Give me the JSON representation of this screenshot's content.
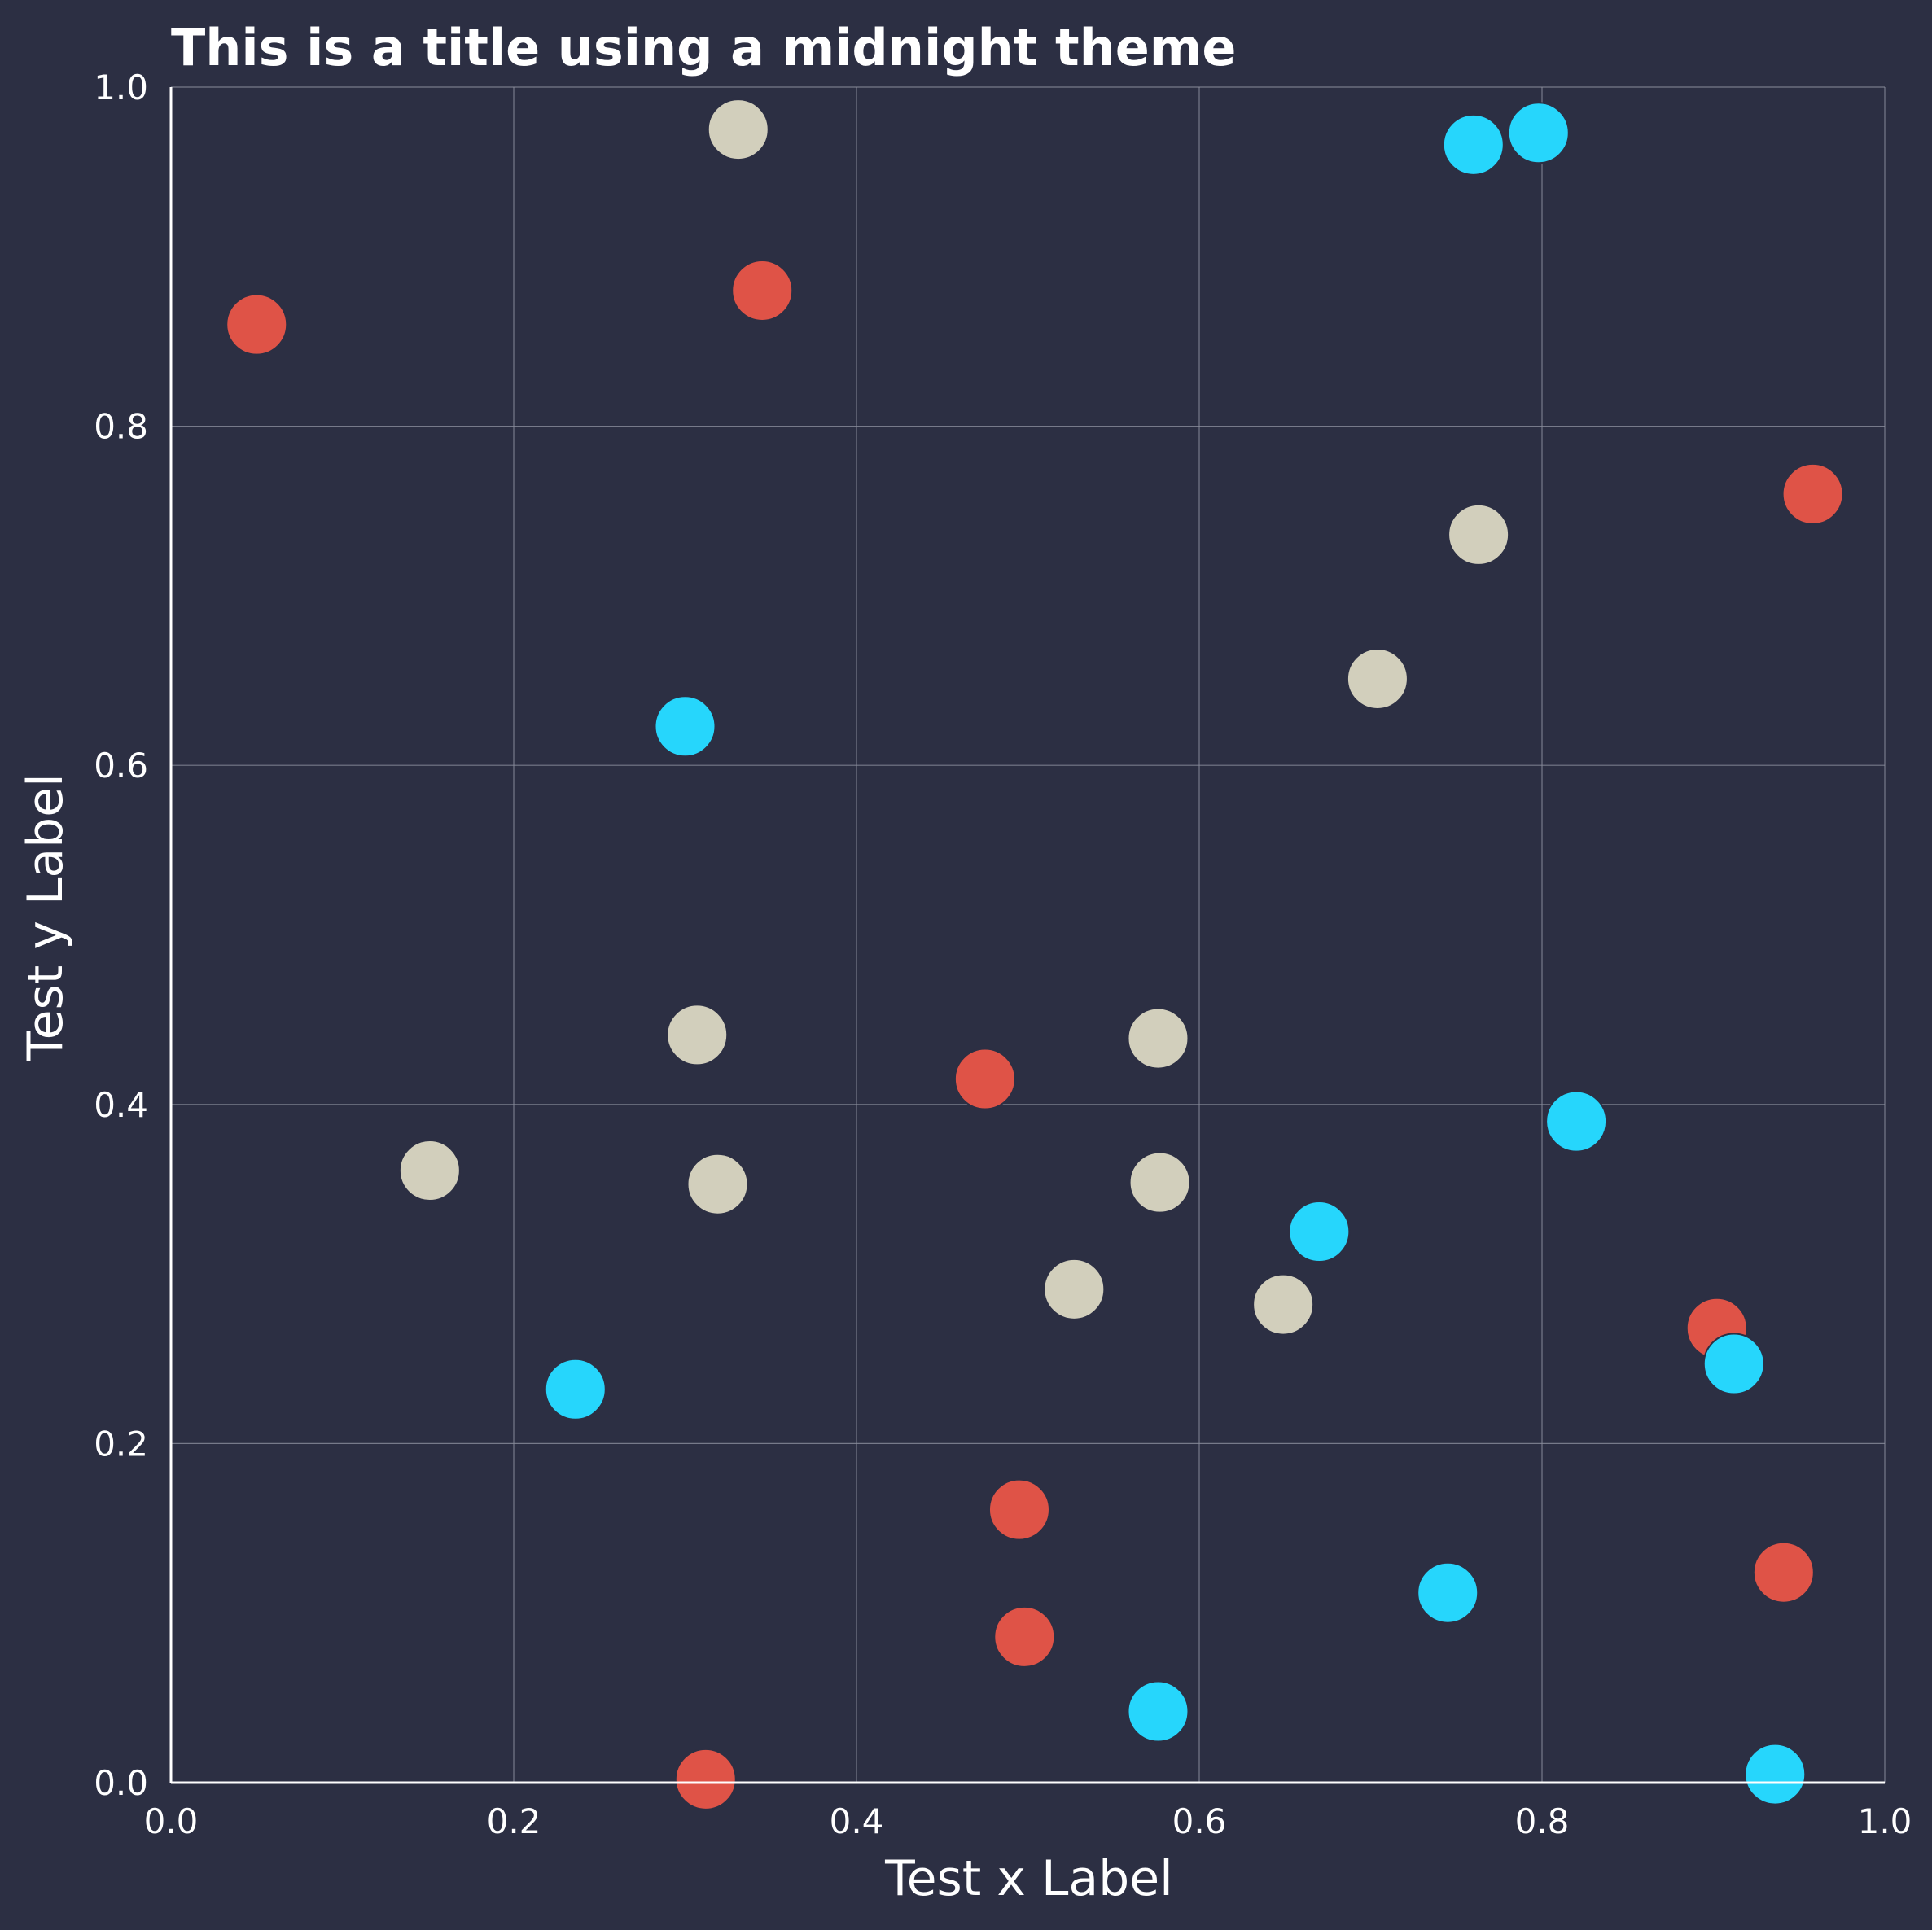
{
  "chart_data": {
    "type": "scatter",
    "title": "This is a title using a midnight theme",
    "xlabel": "Test x Label",
    "ylabel": "Test y Label",
    "xlim": [
      0.0,
      1.0
    ],
    "ylim": [
      0.0,
      1.0
    ],
    "x_ticks": [
      "0.0",
      "0.2",
      "0.4",
      "0.6",
      "0.8",
      "1.0"
    ],
    "y_ticks": [
      "0.0",
      "0.2",
      "0.4",
      "0.6",
      "0.8",
      "1.0"
    ],
    "grid": true,
    "colors": {
      "background": "#2c2f43",
      "text": "#ffffff",
      "grid": "#8a8d9c"
    },
    "series": [
      {
        "color": "#df5347",
        "points": [
          {
            "x": 0.05,
            "y": 0.86
          },
          {
            "x": 0.345,
            "y": 0.88
          },
          {
            "x": 0.475,
            "y": 0.415
          },
          {
            "x": 0.495,
            "y": 0.161
          },
          {
            "x": 0.498,
            "y": 0.086
          },
          {
            "x": 0.312,
            "y": 0.002
          },
          {
            "x": 0.902,
            "y": 0.268
          },
          {
            "x": 0.941,
            "y": 0.124
          },
          {
            "x": 0.958,
            "y": 0.76
          }
        ]
      },
      {
        "color": "#d2cfbc",
        "points": [
          {
            "x": 0.331,
            "y": 0.975
          },
          {
            "x": 0.763,
            "y": 0.736
          },
          {
            "x": 0.704,
            "y": 0.651
          },
          {
            "x": 0.307,
            "y": 0.441
          },
          {
            "x": 0.576,
            "y": 0.439
          },
          {
            "x": 0.151,
            "y": 0.361
          },
          {
            "x": 0.319,
            "y": 0.353
          },
          {
            "x": 0.577,
            "y": 0.354
          },
          {
            "x": 0.527,
            "y": 0.291
          },
          {
            "x": 0.649,
            "y": 0.282
          }
        ]
      },
      {
        "color": "#26d6fc",
        "points": [
          {
            "x": 0.76,
            "y": 0.966
          },
          {
            "x": 0.798,
            "y": 0.973
          },
          {
            "x": 0.3,
            "y": 0.623
          },
          {
            "x": 0.82,
            "y": 0.39
          },
          {
            "x": 0.67,
            "y": 0.325
          },
          {
            "x": 0.236,
            "y": 0.232
          },
          {
            "x": 0.912,
            "y": 0.247
          },
          {
            "x": 0.745,
            "y": 0.112
          },
          {
            "x": 0.576,
            "y": 0.042
          },
          {
            "x": 0.936,
            "y": 0.005
          }
        ]
      }
    ]
  }
}
